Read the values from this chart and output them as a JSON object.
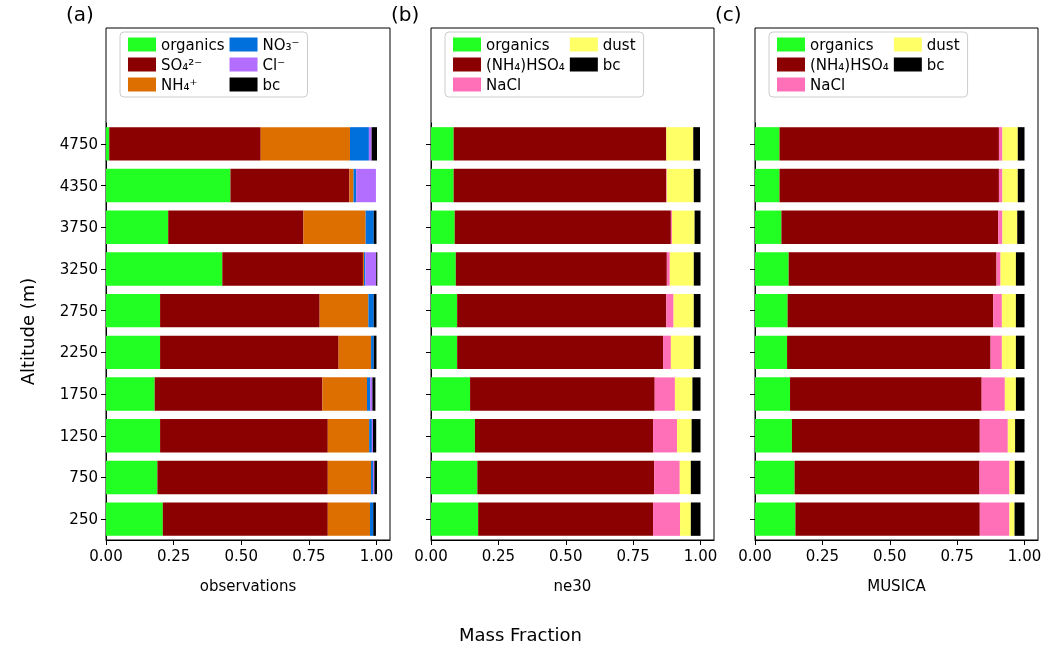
{
  "chart_data": [
    {
      "type": "bar",
      "orientation": "horizontal",
      "stacked": true,
      "title": "(a)",
      "xlabel": "observations",
      "ylabel": "Altitude (m)",
      "legend": "top",
      "grid": false,
      "categories": [
        "4750",
        "4350",
        "3750",
        "3250",
        "2750",
        "2250",
        "1750",
        "1250",
        "750",
        "250"
      ],
      "xlim": [
        0,
        1.05
      ],
      "xticks": [
        {
          "value": 0,
          "label": "0.00"
        },
        {
          "value": 0.25,
          "label": "0.25"
        },
        {
          "value": 0.5,
          "label": "0.50"
        },
        {
          "value": 0.75,
          "label": "0.75"
        },
        {
          "value": 1,
          "label": "1.00"
        }
      ],
      "series": [
        {
          "name": "organics",
          "color": "#22ff22",
          "values": [
            0.012,
            0.46,
            0.23,
            0.43,
            0.2,
            0.2,
            0.18,
            0.2,
            0.19,
            0.21
          ]
        },
        {
          "name": "SO₄²⁻",
          "color": "#8b0000",
          "values": [
            0.56,
            0.44,
            0.5,
            0.52,
            0.59,
            0.66,
            0.62,
            0.62,
            0.63,
            0.61
          ]
        },
        {
          "name": "NH₄⁺",
          "color": "#dd6e00",
          "values": [
            0.33,
            0.015,
            0.23,
            0.004,
            0.18,
            0.12,
            0.165,
            0.153,
            0.16,
            0.156
          ]
        },
        {
          "name": "NO₃⁻",
          "color": "#0070dd",
          "values": [
            0.07,
            0.01,
            0.03,
            0.005,
            0.02,
            0.01,
            0.012,
            0.01,
            0.007,
            0.012
          ]
        },
        {
          "name": "Cl⁻",
          "color": "#b36eff",
          "values": [
            0.01,
            0.073,
            null,
            0.04,
            null,
            null,
            0.008,
            0.004,
            0.005,
            null
          ]
        },
        {
          "name": "bc",
          "color": "#000000",
          "values": [
            0.02,
            null,
            0.01,
            0.004,
            0.01,
            0.01,
            0.011,
            0.012,
            0.01,
            0.01
          ]
        }
      ]
    },
    {
      "type": "bar",
      "orientation": "horizontal",
      "stacked": true,
      "title": "(b)",
      "xlabel": "ne30",
      "legend": "top",
      "grid": false,
      "tick_labels": "x",
      "annotations": [
        "Mass Fraction"
      ],
      "categories": [
        "4750",
        "4350",
        "3750",
        "3250",
        "2750",
        "2250",
        "1750",
        "1250",
        "750",
        "250"
      ],
      "xlim": [
        0,
        1.05
      ],
      "xticks": [
        {
          "value": 0,
          "label": "0.00"
        },
        {
          "value": 0.25,
          "label": "0.25"
        },
        {
          "value": 0.5,
          "label": "0.50"
        },
        {
          "value": 0.75,
          "label": "0.75"
        },
        {
          "value": 1,
          "label": "1.00"
        }
      ],
      "series": [
        {
          "name": "organics",
          "color": "#22ff22",
          "values": [
            0.084,
            0.084,
            0.088,
            0.092,
            0.097,
            0.097,
            0.145,
            0.163,
            0.172,
            0.175
          ]
        },
        {
          "name": "(NH₄)HSO₄",
          "color": "#8b0000",
          "values": [
            0.789,
            0.789,
            0.802,
            0.783,
            0.776,
            0.764,
            0.685,
            0.661,
            0.656,
            0.649
          ]
        },
        {
          "name": "NaCl",
          "color": "#ff70b8",
          "values": [
            null,
            0.002,
            0.004,
            0.011,
            0.027,
            0.029,
            0.075,
            0.089,
            0.095,
            0.1
          ]
        },
        {
          "name": "dust",
          "color": "#ffff66",
          "values": [
            0.1,
            0.1,
            0.084,
            0.089,
            0.075,
            0.085,
            0.065,
            0.054,
            0.041,
            0.04
          ]
        },
        {
          "name": "bc",
          "color": "#000000",
          "values": [
            0.025,
            0.025,
            0.022,
            0.025,
            0.025,
            0.025,
            0.03,
            0.033,
            0.036,
            0.036
          ]
        }
      ]
    },
    {
      "type": "bar",
      "orientation": "horizontal",
      "stacked": true,
      "title": "(c)",
      "xlabel": "MUSICA",
      "legend": "top",
      "grid": false,
      "tick_labels": "x",
      "categories": [
        "4750",
        "4350",
        "3750",
        "3250",
        "2750",
        "2250",
        "1750",
        "1250",
        "750",
        "250"
      ],
      "xlim": [
        0,
        1.05
      ],
      "xticks": [
        {
          "value": 0,
          "label": "0.00"
        },
        {
          "value": 0.25,
          "label": "0.25"
        },
        {
          "value": 0.5,
          "label": "0.50"
        },
        {
          "value": 0.75,
          "label": "0.75"
        },
        {
          "value": 1,
          "label": "1.00"
        }
      ],
      "series": [
        {
          "name": "organics",
          "color": "#22ff22",
          "values": [
            0.091,
            0.091,
            0.098,
            0.125,
            0.121,
            0.119,
            0.13,
            0.137,
            0.147,
            0.15
          ]
        },
        {
          "name": "(NH₄)HSO₄",
          "color": "#8b0000",
          "values": [
            0.814,
            0.814,
            0.804,
            0.771,
            0.763,
            0.755,
            0.711,
            0.697,
            0.686,
            0.684
          ]
        },
        {
          "name": "NaCl",
          "color": "#ff70b8",
          "values": [
            0.013,
            0.013,
            0.016,
            0.015,
            0.032,
            0.042,
            0.086,
            0.104,
            0.111,
            0.11
          ]
        },
        {
          "name": "dust",
          "color": "#ffff66",
          "values": [
            0.057,
            0.057,
            0.055,
            0.057,
            0.052,
            0.052,
            0.041,
            0.027,
            0.02,
            0.019
          ]
        },
        {
          "name": "bc",
          "color": "#000000",
          "values": [
            0.025,
            0.025,
            0.027,
            0.032,
            0.032,
            0.032,
            0.032,
            0.035,
            0.036,
            0.037
          ]
        }
      ]
    }
  ]
}
